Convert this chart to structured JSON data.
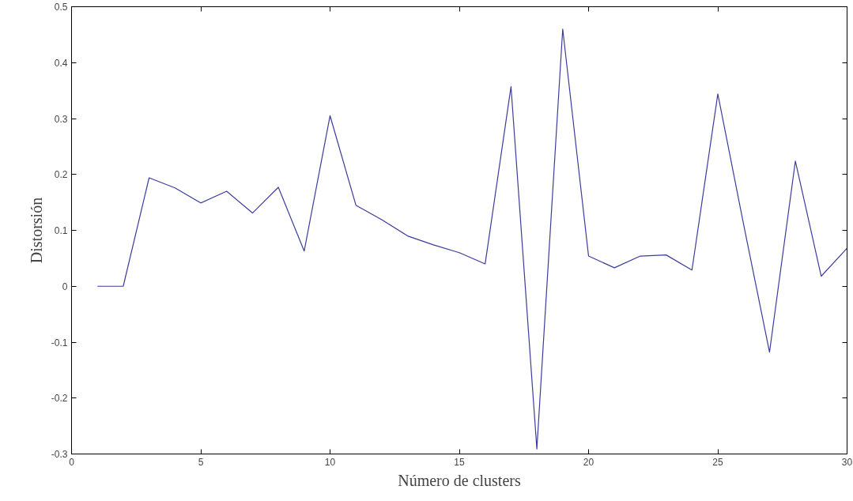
{
  "chart_data": {
    "type": "line",
    "xlabel": "Número de clusters",
    "ylabel": "Distorsión",
    "x": [
      1,
      2,
      3,
      4,
      5,
      6,
      7,
      8,
      9,
      10,
      11,
      12,
      13,
      14,
      15,
      16,
      17,
      18,
      19,
      20,
      21,
      22,
      23,
      24,
      25,
      26,
      27,
      28,
      29,
      30
    ],
    "series": [
      {
        "color": "#3c3c9c",
        "values": [
          0,
          0,
          0.194,
          0.176,
          0.149,
          0.17,
          0.131,
          0.177,
          0.063,
          0.305,
          0.145,
          0.119,
          0.09,
          0.074,
          0.06,
          0.04,
          0.357,
          -0.291,
          0.46,
          0.054,
          0.033,
          0.054,
          0.056,
          0.029,
          0.344,
          0.11,
          -0.118,
          0.224,
          0.018,
          0.068
        ]
      }
    ],
    "xlim": [
      0,
      30
    ],
    "ylim": [
      -0.3,
      0.5
    ],
    "xticks": [
      0,
      5,
      10,
      15,
      20,
      25,
      30
    ],
    "yticks": [
      -0.3,
      -0.2,
      -0.1,
      0,
      0.1,
      0.2,
      0.3,
      0.4,
      0.5
    ],
    "grid": false,
    "marker": "none",
    "line_style": "solid"
  }
}
